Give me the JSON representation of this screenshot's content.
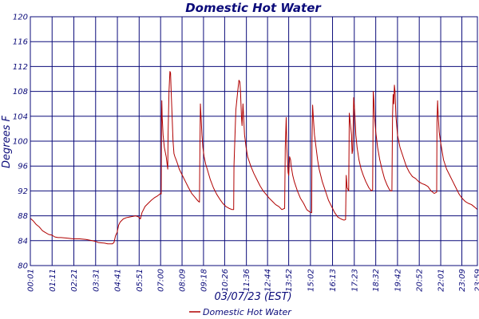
{
  "chart_data": {
    "type": "line",
    "title": "Domestic Hot Water",
    "xlabel": "03/07/23 (EST)",
    "ylabel": "Degrees F",
    "ylim": [
      80,
      120
    ],
    "yticks": [
      80,
      84,
      88,
      92,
      96,
      100,
      104,
      108,
      112,
      116,
      120
    ],
    "xlim": [
      1,
      1439
    ],
    "x_tick_labels": [
      "00:01",
      "01:11",
      "02:21",
      "03:31",
      "04:41",
      "05:51",
      "07:00",
      "08:09",
      "09:18",
      "10:26",
      "11:36",
      "12:44",
      "13:52",
      "15:02",
      "16:13",
      "17:23",
      "18:32",
      "19:42",
      "20:52",
      "22:01",
      "23:09",
      "23:59"
    ],
    "x_tick_minutes": [
      1,
      71,
      141,
      211,
      281,
      351,
      420,
      489,
      558,
      626,
      696,
      764,
      832,
      902,
      973,
      1043,
      1112,
      1182,
      1252,
      1321,
      1389,
      1439
    ],
    "x_unit": "minutes after midnight",
    "grid": true,
    "legend": "bottom",
    "colors": {
      "series": "#b00000",
      "grid": "#0b0b7a",
      "text": "#0b0b7a"
    },
    "series": [
      {
        "name": "Domestic Hot Water",
        "points": [
          [
            1,
            87.6
          ],
          [
            10,
            87.2
          ],
          [
            20,
            86.6
          ],
          [
            30,
            86.2
          ],
          [
            40,
            85.6
          ],
          [
            50,
            85.3
          ],
          [
            60,
            85.0
          ],
          [
            70,
            84.9
          ],
          [
            80,
            84.6
          ],
          [
            90,
            84.5
          ],
          [
            100,
            84.5
          ],
          [
            120,
            84.4
          ],
          [
            140,
            84.3
          ],
          [
            160,
            84.3
          ],
          [
            180,
            84.2
          ],
          [
            200,
            84.0
          ],
          [
            210,
            83.9
          ],
          [
            220,
            83.7
          ],
          [
            240,
            83.6
          ],
          [
            250,
            83.5
          ],
          [
            265,
            83.5
          ],
          [
            270,
            83.7
          ],
          [
            275,
            84.8
          ],
          [
            280,
            85.3
          ],
          [
            285,
            86.5
          ],
          [
            290,
            87.0
          ],
          [
            300,
            87.5
          ],
          [
            310,
            87.7
          ],
          [
            320,
            87.8
          ],
          [
            330,
            87.9
          ],
          [
            340,
            88.0
          ],
          [
            350,
            87.8
          ],
          [
            355,
            87.5
          ],
          [
            360,
            88.5
          ],
          [
            370,
            89.5
          ],
          [
            380,
            90.0
          ],
          [
            390,
            90.5
          ],
          [
            400,
            90.9
          ],
          [
            410,
            91.2
          ],
          [
            415,
            91.4
          ],
          [
            420,
            91.6
          ],
          [
            422,
            91.5
          ],
          [
            423,
            104.0
          ],
          [
            424,
            106.5
          ],
          [
            425,
            104.0
          ],
          [
            428,
            101.0
          ],
          [
            432,
            99.0
          ],
          [
            438,
            97.5
          ],
          [
            443,
            95.5
          ],
          [
            444,
            101.0
          ],
          [
            447,
            108.0
          ],
          [
            450,
            111.2
          ],
          [
            452,
            111.0
          ],
          [
            454,
            108.0
          ],
          [
            457,
            104.0
          ],
          [
            460,
            100.0
          ],
          [
            463,
            98.0
          ],
          [
            466,
            97.5
          ],
          [
            470,
            97.0
          ],
          [
            475,
            96.3
          ],
          [
            480,
            95.5
          ],
          [
            490,
            94.5
          ],
          [
            500,
            93.5
          ],
          [
            510,
            92.5
          ],
          [
            520,
            91.6
          ],
          [
            530,
            91.0
          ],
          [
            540,
            90.4
          ],
          [
            545,
            90.2
          ],
          [
            546,
            96.5
          ],
          [
            548,
            106.0
          ],
          [
            550,
            104.0
          ],
          [
            553,
            101.0
          ],
          [
            556,
            99.0
          ],
          [
            560,
            97.5
          ],
          [
            565,
            96.3
          ],
          [
            570,
            95.5
          ],
          [
            580,
            93.8
          ],
          [
            590,
            92.5
          ],
          [
            600,
            91.5
          ],
          [
            610,
            90.7
          ],
          [
            620,
            90.0
          ],
          [
            630,
            89.5
          ],
          [
            640,
            89.2
          ],
          [
            650,
            89.0
          ],
          [
            655,
            89.0
          ],
          [
            656,
            96.0
          ],
          [
            662,
            105.0
          ],
          [
            668,
            108.0
          ],
          [
            672,
            109.8
          ],
          [
            675,
            109.5
          ],
          [
            677,
            108.0
          ],
          [
            680,
            104.0
          ],
          [
            682,
            102.5
          ],
          [
            685,
            106.0
          ],
          [
            687,
            104.0
          ],
          [
            690,
            101.0
          ],
          [
            695,
            99.0
          ],
          [
            700,
            97.5
          ],
          [
            710,
            96.0
          ],
          [
            720,
            94.8
          ],
          [
            730,
            93.8
          ],
          [
            740,
            92.8
          ],
          [
            750,
            92.0
          ],
          [
            760,
            91.4
          ],
          [
            770,
            90.8
          ],
          [
            780,
            90.3
          ],
          [
            790,
            89.8
          ],
          [
            800,
            89.5
          ],
          [
            810,
            89.0
          ],
          [
            819,
            89.2
          ],
          [
            821,
            99.0
          ],
          [
            824,
            103.8
          ],
          [
            826,
            99.0
          ],
          [
            828,
            97.0
          ],
          [
            830,
            95.0
          ],
          [
            832,
            94.5
          ],
          [
            835,
            97.5
          ],
          [
            838,
            97.0
          ],
          [
            840,
            96.0
          ],
          [
            845,
            94.5
          ],
          [
            850,
            93.5
          ],
          [
            860,
            92.0
          ],
          [
            870,
            90.8
          ],
          [
            880,
            90.0
          ],
          [
            890,
            89.0
          ],
          [
            900,
            88.6
          ],
          [
            906,
            88.5
          ],
          [
            907,
            100.0
          ],
          [
            909,
            105.8
          ],
          [
            911,
            104.0
          ],
          [
            915,
            101.0
          ],
          [
            920,
            99.0
          ],
          [
            925,
            97.0
          ],
          [
            930,
            95.5
          ],
          [
            940,
            93.5
          ],
          [
            950,
            92.0
          ],
          [
            960,
            90.5
          ],
          [
            970,
            89.5
          ],
          [
            980,
            88.5
          ],
          [
            990,
            87.8
          ],
          [
            1000,
            87.5
          ],
          [
            1010,
            87.3
          ],
          [
            1015,
            87.4
          ],
          [
            1017,
            94.5
          ],
          [
            1020,
            92.5
          ],
          [
            1025,
            92.0
          ],
          [
            1027,
            104.5
          ],
          [
            1030,
            103.0
          ],
          [
            1034,
            101.0
          ],
          [
            1036,
            98.0
          ],
          [
            1038,
            98.5
          ],
          [
            1041,
            107.0
          ],
          [
            1044,
            105.0
          ],
          [
            1048,
            101.0
          ],
          [
            1052,
            99.0
          ],
          [
            1058,
            97.0
          ],
          [
            1065,
            95.5
          ],
          [
            1072,
            94.5
          ],
          [
            1080,
            93.5
          ],
          [
            1090,
            92.5
          ],
          [
            1098,
            92.0
          ],
          [
            1102,
            92.2
          ],
          [
            1104,
            108.0
          ],
          [
            1106,
            106.5
          ],
          [
            1108,
            104.0
          ],
          [
            1112,
            101.5
          ],
          [
            1118,
            99.0
          ],
          [
            1125,
            97.0
          ],
          [
            1132,
            95.5
          ],
          [
            1140,
            94.0
          ],
          [
            1148,
            93.0
          ],
          [
            1155,
            92.3
          ],
          [
            1160,
            92.0
          ],
          [
            1164,
            92.0
          ],
          [
            1166,
            104.0
          ],
          [
            1168,
            107.5
          ],
          [
            1170,
            106.0
          ],
          [
            1172,
            109.0
          ],
          [
            1174,
            108.0
          ],
          [
            1177,
            104.0
          ],
          [
            1182,
            101.0
          ],
          [
            1190,
            99.0
          ],
          [
            1200,
            97.5
          ],
          [
            1210,
            96.0
          ],
          [
            1220,
            95.0
          ],
          [
            1230,
            94.3
          ],
          [
            1240,
            94.0
          ],
          [
            1250,
            93.5
          ],
          [
            1260,
            93.2
          ],
          [
            1270,
            93.0
          ],
          [
            1280,
            92.7
          ],
          [
            1290,
            92.0
          ],
          [
            1300,
            91.6
          ],
          [
            1308,
            91.8
          ],
          [
            1309,
            103.0
          ],
          [
            1311,
            106.5
          ],
          [
            1313,
            104.0
          ],
          [
            1316,
            101.5
          ],
          [
            1320,
            100.0
          ],
          [
            1325,
            98.5
          ],
          [
            1330,
            97.0
          ],
          [
            1340,
            95.5
          ],
          [
            1350,
            94.5
          ],
          [
            1360,
            93.5
          ],
          [
            1370,
            92.5
          ],
          [
            1380,
            91.5
          ],
          [
            1390,
            90.8
          ],
          [
            1400,
            90.3
          ],
          [
            1410,
            90.0
          ],
          [
            1420,
            89.8
          ],
          [
            1430,
            89.4
          ],
          [
            1439,
            89.0
          ]
        ]
      }
    ]
  }
}
